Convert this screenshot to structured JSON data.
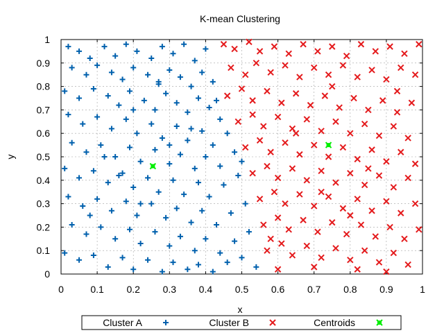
{
  "chart_data": {
    "type": "scatter",
    "title": "K-mean Clustering",
    "xlabel": "x",
    "ylabel": "y",
    "xlim": [
      0,
      1
    ],
    "ylim": [
      0,
      1
    ],
    "xticks": [
      "0",
      "0.1",
      "0.2",
      "0.3",
      "0.4",
      "0.5",
      "0.6",
      "0.7",
      "0.8",
      "0.9",
      "1"
    ],
    "yticks": [
      "0",
      "0.1",
      "0.2",
      "0.3",
      "0.4",
      "0.5",
      "0.6",
      "0.7",
      "0.8",
      "0.9",
      "1"
    ],
    "grid": true,
    "legend_position": "bottom",
    "series": [
      {
        "name": "Cluster A",
        "marker": "plus",
        "color": "#0060ad",
        "points": [
          [
            0.02,
            0.97
          ],
          [
            0.05,
            0.95
          ],
          [
            0.08,
            0.92
          ],
          [
            0.12,
            0.97
          ],
          [
            0.15,
            0.93
          ],
          [
            0.18,
            0.98
          ],
          [
            0.21,
            0.95
          ],
          [
            0.25,
            0.92
          ],
          [
            0.28,
            0.97
          ],
          [
            0.31,
            0.94
          ],
          [
            0.34,
            0.98
          ],
          [
            0.37,
            0.91
          ],
          [
            0.4,
            0.96
          ],
          [
            0.03,
            0.88
          ],
          [
            0.07,
            0.85
          ],
          [
            0.1,
            0.89
          ],
          [
            0.14,
            0.86
          ],
          [
            0.17,
            0.83
          ],
          [
            0.2,
            0.88
          ],
          [
            0.24,
            0.85
          ],
          [
            0.27,
            0.81
          ],
          [
            0.3,
            0.87
          ],
          [
            0.33,
            0.84
          ],
          [
            0.36,
            0.8
          ],
          [
            0.39,
            0.86
          ],
          [
            0.42,
            0.82
          ],
          [
            0.01,
            0.78
          ],
          [
            0.05,
            0.75
          ],
          [
            0.09,
            0.79
          ],
          [
            0.13,
            0.76
          ],
          [
            0.16,
            0.72
          ],
          [
            0.19,
            0.78
          ],
          [
            0.23,
            0.74
          ],
          [
            0.26,
            0.7
          ],
          [
            0.29,
            0.77
          ],
          [
            0.32,
            0.73
          ],
          [
            0.35,
            0.69
          ],
          [
            0.38,
            0.75
          ],
          [
            0.41,
            0.71
          ],
          [
            0.44,
            0.66
          ],
          [
            0.02,
            0.68
          ],
          [
            0.06,
            0.64
          ],
          [
            0.1,
            0.67
          ],
          [
            0.14,
            0.62
          ],
          [
            0.18,
            0.66
          ],
          [
            0.21,
            0.6
          ],
          [
            0.25,
            0.64
          ],
          [
            0.28,
            0.58
          ],
          [
            0.32,
            0.63
          ],
          [
            0.35,
            0.57
          ],
          [
            0.39,
            0.61
          ],
          [
            0.42,
            0.55
          ],
          [
            0.46,
            0.6
          ],
          [
            0.03,
            0.56
          ],
          [
            0.07,
            0.52
          ],
          [
            0.11,
            0.55
          ],
          [
            0.15,
            0.5
          ],
          [
            0.19,
            0.54
          ],
          [
            0.22,
            0.48
          ],
          [
            0.26,
            0.53
          ],
          [
            0.3,
            0.47
          ],
          [
            0.33,
            0.51
          ],
          [
            0.37,
            0.45
          ],
          [
            0.4,
            0.5
          ],
          [
            0.44,
            0.46
          ],
          [
            0.48,
            0.52
          ],
          [
            0.01,
            0.45
          ],
          [
            0.05,
            0.41
          ],
          [
            0.09,
            0.44
          ],
          [
            0.13,
            0.39
          ],
          [
            0.17,
            0.43
          ],
          [
            0.2,
            0.37
          ],
          [
            0.24,
            0.41
          ],
          [
            0.27,
            0.35
          ],
          [
            0.31,
            0.4
          ],
          [
            0.34,
            0.34
          ],
          [
            0.38,
            0.39
          ],
          [
            0.41,
            0.33
          ],
          [
            0.45,
            0.38
          ],
          [
            0.49,
            0.42
          ],
          [
            0.02,
            0.33
          ],
          [
            0.06,
            0.29
          ],
          [
            0.1,
            0.32
          ],
          [
            0.14,
            0.27
          ],
          [
            0.18,
            0.31
          ],
          [
            0.21,
            0.25
          ],
          [
            0.25,
            0.3
          ],
          [
            0.29,
            0.24
          ],
          [
            0.32,
            0.28
          ],
          [
            0.36,
            0.22
          ],
          [
            0.39,
            0.27
          ],
          [
            0.43,
            0.21
          ],
          [
            0.47,
            0.26
          ],
          [
            0.51,
            0.3
          ],
          [
            0.03,
            0.21
          ],
          [
            0.07,
            0.17
          ],
          [
            0.11,
            0.2
          ],
          [
            0.15,
            0.15
          ],
          [
            0.19,
            0.19
          ],
          [
            0.22,
            0.13
          ],
          [
            0.26,
            0.18
          ],
          [
            0.3,
            0.12
          ],
          [
            0.33,
            0.16
          ],
          [
            0.37,
            0.1
          ],
          [
            0.4,
            0.15
          ],
          [
            0.44,
            0.09
          ],
          [
            0.48,
            0.14
          ],
          [
            0.52,
            0.18
          ],
          [
            0.01,
            0.09
          ],
          [
            0.05,
            0.06
          ],
          [
            0.09,
            0.08
          ],
          [
            0.13,
            0.03
          ],
          [
            0.17,
            0.07
          ],
          [
            0.2,
            0.02
          ],
          [
            0.24,
            0.06
          ],
          [
            0.28,
            0.01
          ],
          [
            0.31,
            0.05
          ],
          [
            0.35,
            0.02
          ],
          [
            0.38,
            0.04
          ],
          [
            0.42,
            0.01
          ],
          [
            0.46,
            0.05
          ],
          [
            0.5,
            0.07
          ],
          [
            0.54,
            0.03
          ],
          [
            0.12,
            0.5
          ],
          [
            0.2,
            0.7
          ],
          [
            0.3,
            0.55
          ],
          [
            0.22,
            0.3
          ],
          [
            0.16,
            0.42
          ],
          [
            0.36,
            0.62
          ],
          [
            0.08,
            0.25
          ],
          [
            0.27,
            0.82
          ],
          [
            0.43,
            0.74
          ],
          [
            0.5,
            0.48
          ]
        ]
      },
      {
        "name": "Cluster B",
        "marker": "cross",
        "color": "#e41a1c",
        "points": [
          [
            0.45,
            0.98
          ],
          [
            0.48,
            0.96
          ],
          [
            0.52,
            0.99
          ],
          [
            0.55,
            0.95
          ],
          [
            0.59,
            0.97
          ],
          [
            0.63,
            0.94
          ],
          [
            0.67,
            0.98
          ],
          [
            0.71,
            0.95
          ],
          [
            0.75,
            0.97
          ],
          [
            0.79,
            0.93
          ],
          [
            0.83,
            0.98
          ],
          [
            0.87,
            0.95
          ],
          [
            0.91,
            0.97
          ],
          [
            0.95,
            0.94
          ],
          [
            0.99,
            0.98
          ],
          [
            0.47,
            0.88
          ],
          [
            0.51,
            0.85
          ],
          [
            0.54,
            0.9
          ],
          [
            0.58,
            0.86
          ],
          [
            0.62,
            0.89
          ],
          [
            0.66,
            0.84
          ],
          [
            0.7,
            0.88
          ],
          [
            0.74,
            0.85
          ],
          [
            0.78,
            0.89
          ],
          [
            0.82,
            0.84
          ],
          [
            0.86,
            0.87
          ],
          [
            0.9,
            0.83
          ],
          [
            0.94,
            0.88
          ],
          [
            0.98,
            0.85
          ],
          [
            0.46,
            0.76
          ],
          [
            0.5,
            0.79
          ],
          [
            0.53,
            0.74
          ],
          [
            0.57,
            0.78
          ],
          [
            0.61,
            0.73
          ],
          [
            0.65,
            0.77
          ],
          [
            0.69,
            0.72
          ],
          [
            0.73,
            0.76
          ],
          [
            0.77,
            0.71
          ],
          [
            0.81,
            0.75
          ],
          [
            0.85,
            0.7
          ],
          [
            0.89,
            0.74
          ],
          [
            0.93,
            0.69
          ],
          [
            0.97,
            0.73
          ],
          [
            0.49,
            0.65
          ],
          [
            0.53,
            0.68
          ],
          [
            0.56,
            0.63
          ],
          [
            0.6,
            0.67
          ],
          [
            0.64,
            0.62
          ],
          [
            0.68,
            0.66
          ],
          [
            0.72,
            0.61
          ],
          [
            0.76,
            0.65
          ],
          [
            0.8,
            0.6
          ],
          [
            0.84,
            0.64
          ],
          [
            0.88,
            0.59
          ],
          [
            0.92,
            0.63
          ],
          [
            0.96,
            0.58
          ],
          [
            0.51,
            0.54
          ],
          [
            0.55,
            0.57
          ],
          [
            0.58,
            0.52
          ],
          [
            0.62,
            0.56
          ],
          [
            0.66,
            0.51
          ],
          [
            0.7,
            0.55
          ],
          [
            0.74,
            0.5
          ],
          [
            0.78,
            0.54
          ],
          [
            0.82,
            0.49
          ],
          [
            0.86,
            0.53
          ],
          [
            0.9,
            0.48
          ],
          [
            0.94,
            0.52
          ],
          [
            0.98,
            0.47
          ],
          [
            0.53,
            0.43
          ],
          [
            0.57,
            0.46
          ],
          [
            0.6,
            0.41
          ],
          [
            0.64,
            0.45
          ],
          [
            0.68,
            0.4
          ],
          [
            0.72,
            0.44
          ],
          [
            0.76,
            0.39
          ],
          [
            0.8,
            0.43
          ],
          [
            0.84,
            0.38
          ],
          [
            0.88,
            0.42
          ],
          [
            0.92,
            0.37
          ],
          [
            0.96,
            0.41
          ],
          [
            0.55,
            0.32
          ],
          [
            0.59,
            0.35
          ],
          [
            0.62,
            0.3
          ],
          [
            0.66,
            0.34
          ],
          [
            0.7,
            0.29
          ],
          [
            0.74,
            0.33
          ],
          [
            0.78,
            0.28
          ],
          [
            0.82,
            0.32
          ],
          [
            0.86,
            0.27
          ],
          [
            0.9,
            0.31
          ],
          [
            0.94,
            0.26
          ],
          [
            0.98,
            0.3
          ],
          [
            0.56,
            0.21
          ],
          [
            0.6,
            0.24
          ],
          [
            0.63,
            0.19
          ],
          [
            0.67,
            0.23
          ],
          [
            0.71,
            0.18
          ],
          [
            0.75,
            0.22
          ],
          [
            0.79,
            0.17
          ],
          [
            0.83,
            0.21
          ],
          [
            0.87,
            0.16
          ],
          [
            0.91,
            0.2
          ],
          [
            0.95,
            0.15
          ],
          [
            0.99,
            0.19
          ],
          [
            0.57,
            0.1
          ],
          [
            0.61,
            0.13
          ],
          [
            0.64,
            0.08
          ],
          [
            0.68,
            0.12
          ],
          [
            0.72,
            0.07
          ],
          [
            0.76,
            0.11
          ],
          [
            0.8,
            0.06
          ],
          [
            0.84,
            0.1
          ],
          [
            0.88,
            0.05
          ],
          [
            0.92,
            0.09
          ],
          [
            0.96,
            0.04
          ],
          [
            0.6,
            0.02
          ],
          [
            0.7,
            0.03
          ],
          [
            0.82,
            0.02
          ],
          [
            0.9,
            0.01
          ],
          [
            0.65,
            0.6
          ],
          [
            0.75,
            0.8
          ],
          [
            0.85,
            0.45
          ],
          [
            0.72,
            0.35
          ],
          [
            0.93,
            0.78
          ],
          [
            0.58,
            0.15
          ],
          [
            0.8,
            0.25
          ]
        ]
      },
      {
        "name": "Centroids",
        "marker": "cross-box",
        "color": "#00ee00",
        "points": [
          [
            0.254,
            0.46
          ],
          [
            0.74,
            0.55
          ]
        ]
      }
    ]
  }
}
